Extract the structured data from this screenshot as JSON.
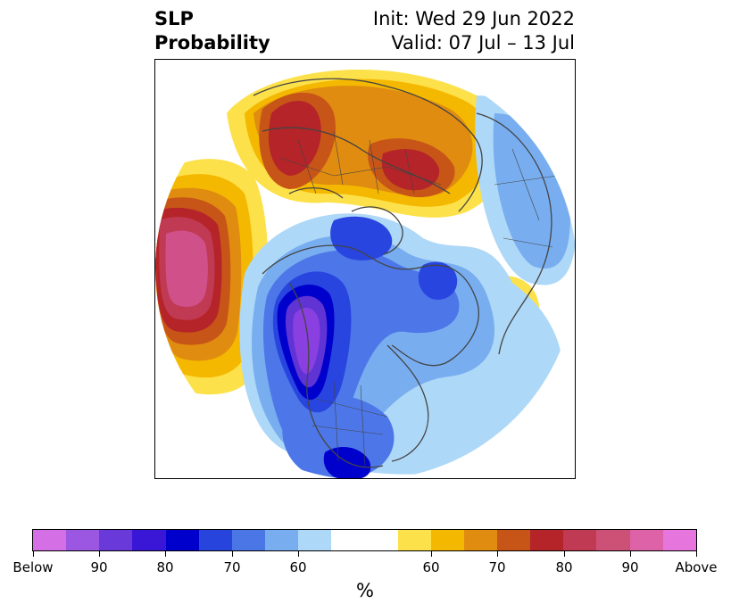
{
  "title": {
    "left_line1": "SLP",
    "left_line2": "Probability",
    "right_line1": "Init: Wed 29 Jun 2022",
    "right_line2": "Valid: 07 Jul – 13 Jul"
  },
  "map": {
    "projection": "polar stereographic, North Pole",
    "fill_colors": {
      "below_high": "#8a3fe0",
      "below_90": "#5f33d4",
      "below_80": "#0000cd",
      "below_70": "#2845e0",
      "below_60": "#4d77e8",
      "below_50": "#78aef0",
      "below_40": "#aed8f7",
      "neutral": "#ffffff",
      "above_40": "#fde14a",
      "above_50": "#f4b800",
      "above_60": "#e08c10",
      "above_70": "#c75518",
      "above_80": "#b52428",
      "above_90": "#c03a54",
      "above_high": "#d0508a"
    },
    "coastline_color": "#444444"
  },
  "colorbar": {
    "unit_label": "%",
    "colors": [
      "#d56fe6",
      "#9c57e2",
      "#6a39da",
      "#3a17d6",
      "#0000cd",
      "#2744dc",
      "#4b76e6",
      "#78aef0",
      "#aed8f7",
      "#ffffff",
      "#fde14a",
      "#f4b800",
      "#e08c10",
      "#c75518",
      "#b52428",
      "#c03a54",
      "#cd5077",
      "#dd62a7",
      "#e676dd"
    ],
    "tick_labels": [
      "Below",
      "90",
      "80",
      "70",
      "60",
      "60",
      "70",
      "80",
      "90",
      "Above"
    ]
  }
}
